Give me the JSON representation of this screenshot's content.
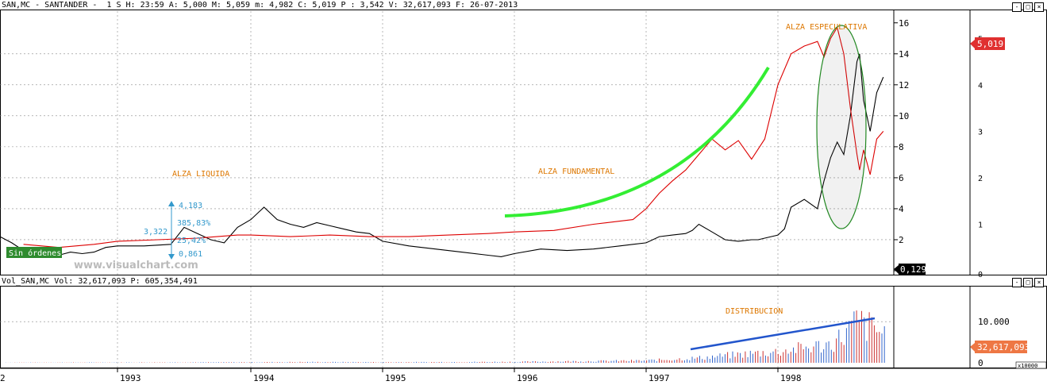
{
  "price_header": "SAN,MC - SANTANDER -  1 S H: 23:59 A: 5,000 M: 5,059 m: 4,982 C: 5,019 P : 3,542 V: 32,617,093 F: 26-07-2013",
  "volume_header": "Vol_SAN,MC Vol: 32,617,093 P: 605,354,491",
  "watermark": "www.visualchart.com",
  "window_controls": [
    "-",
    "□",
    "×"
  ],
  "colors": {
    "price": "#000000",
    "relative": "#dd0000",
    "highlight": "#33ee33",
    "ellipse": "#228822",
    "annotation": "#dd7700",
    "measure": "#3399cc",
    "last_price_badge": "#e03030",
    "last_volume_badge": "#ee7744",
    "badge_dark": "#000000",
    "volume_up": "#3366cc",
    "volume_down": "#cc3333",
    "trendline": "#2255cc",
    "grid": "#888888"
  },
  "chart_data": [
    {
      "type": "line",
      "title": "",
      "x_ticks": [
        "2",
        "1993",
        "1994",
        "1995",
        "1996",
        "1997",
        "1998"
      ],
      "xlim": [
        1992.0,
        1998.85
      ],
      "y_axis_right_outer": {
        "ticks": [
          0,
          2,
          4,
          6,
          8,
          10,
          12,
          14,
          16
        ],
        "ylim": [
          0,
          16.5
        ]
      },
      "y_axis_right_inner": {
        "ticks": [
          1,
          2,
          3,
          4,
          5
        ],
        "ylim": [
          0,
          5.5
        ]
      },
      "grid": true,
      "series": [
        {
          "color_key": "price",
          "x": [
            1992.0,
            1992.1,
            1992.2,
            1992.3,
            1992.4,
            1992.5,
            1992.6,
            1992.7,
            1992.8,
            1992.9,
            1993.0,
            1993.2,
            1993.4,
            1993.5,
            1993.6,
            1993.7,
            1993.8,
            1993.9,
            1994.0,
            1994.1,
            1994.2,
            1994.3,
            1994.4,
            1994.5,
            1994.6,
            1994.7,
            1994.8,
            1994.9,
            1995.0,
            1995.2,
            1995.4,
            1995.6,
            1995.8,
            1995.9,
            1996.0,
            1996.2,
            1996.4,
            1996.6,
            1996.8,
            1996.9,
            1997.0,
            1997.1,
            1997.2,
            1997.3,
            1997.35,
            1997.4,
            1997.5,
            1997.6,
            1997.7,
            1997.8,
            1997.85,
            1997.9,
            1998.0,
            1998.05,
            1998.1,
            1998.2,
            1998.3,
            1998.35,
            1998.4,
            1998.45,
            1998.5,
            1998.55,
            1998.6,
            1998.62,
            1998.65,
            1998.7,
            1998.75,
            1998.8
          ],
          "y": [
            2.2,
            1.8,
            1.3,
            0.9,
            1.1,
            1.0,
            1.2,
            1.1,
            1.2,
            1.5,
            1.6,
            1.6,
            1.7,
            2.8,
            2.4,
            2.0,
            1.8,
            2.8,
            3.3,
            4.1,
            3.3,
            3.0,
            2.8,
            3.1,
            2.9,
            2.7,
            2.5,
            2.4,
            1.9,
            1.6,
            1.4,
            1.2,
            1.0,
            0.9,
            1.1,
            1.4,
            1.3,
            1.4,
            1.6,
            1.7,
            1.8,
            2.2,
            2.3,
            2.4,
            2.6,
            3.0,
            2.5,
            2.0,
            1.9,
            2.0,
            2.0,
            2.1,
            2.3,
            2.7,
            4.1,
            4.6,
            4.0,
            5.8,
            7.3,
            8.3,
            7.5,
            10.0,
            13.5,
            14.0,
            11.0,
            9.0,
            11.5,
            12.5
          ]
        },
        {
          "color_key": "relative",
          "x": [
            1992.2,
            1992.5,
            1992.8,
            1993.0,
            1993.3,
            1993.6,
            1993.9,
            1994.0,
            1994.3,
            1994.6,
            1994.9,
            1995.2,
            1995.5,
            1995.8,
            1996.0,
            1996.3,
            1996.6,
            1996.9,
            1997.0,
            1997.1,
            1997.2,
            1997.3,
            1997.4,
            1997.5,
            1997.6,
            1997.7,
            1997.8,
            1997.9,
            1998.0,
            1998.1,
            1998.2,
            1998.3,
            1998.35,
            1998.4,
            1998.45,
            1998.5,
            1998.55,
            1998.6,
            1998.62,
            1998.65,
            1998.7,
            1998.75,
            1998.8
          ],
          "y": [
            1.7,
            1.5,
            1.7,
            1.9,
            2.0,
            2.1,
            2.3,
            2.3,
            2.2,
            2.3,
            2.2,
            2.2,
            2.3,
            2.4,
            2.5,
            2.6,
            3.0,
            3.3,
            4.0,
            5.0,
            5.8,
            6.5,
            7.5,
            8.5,
            7.8,
            8.4,
            7.2,
            8.5,
            12.0,
            14.0,
            14.5,
            14.8,
            13.8,
            15.0,
            15.7,
            14.0,
            10.5,
            7.5,
            6.5,
            7.8,
            6.2,
            8.5,
            9.0
          ]
        }
      ],
      "last_price_label": "5,019",
      "left_marker_label": "0,129",
      "annotations": [
        "ALZA LIQUIDA",
        "ALZA FUNDAMENTAL",
        "ALZA ESPECULATIVA"
      ],
      "badge_text": "Sin órdenes",
      "measure_labels": [
        "4,183",
        "385,83%",
        "3,322",
        "25,42%",
        "0,861"
      ]
    },
    {
      "type": "bar",
      "title": "",
      "y_ticks": [
        "0",
        "10.000"
      ],
      "y_unit": "x10000",
      "volume_label": "32,617,093",
      "annotation": "DISTRIBUCION",
      "series": [
        {
          "name": "Vol_SAN,MC",
          "x": [
            1992.0,
            1993.0,
            1994.0,
            1994.5,
            1995.0,
            1996.0,
            1997.0,
            1997.4,
            1997.8,
            1998.0,
            1998.2,
            1998.4,
            1998.5,
            1998.6,
            1998.8
          ],
          "y": [
            50,
            80,
            150,
            200,
            150,
            250,
            600,
            1300,
            2500,
            3000,
            4000,
            5000,
            7500,
            11000,
            8000
          ]
        }
      ]
    }
  ]
}
